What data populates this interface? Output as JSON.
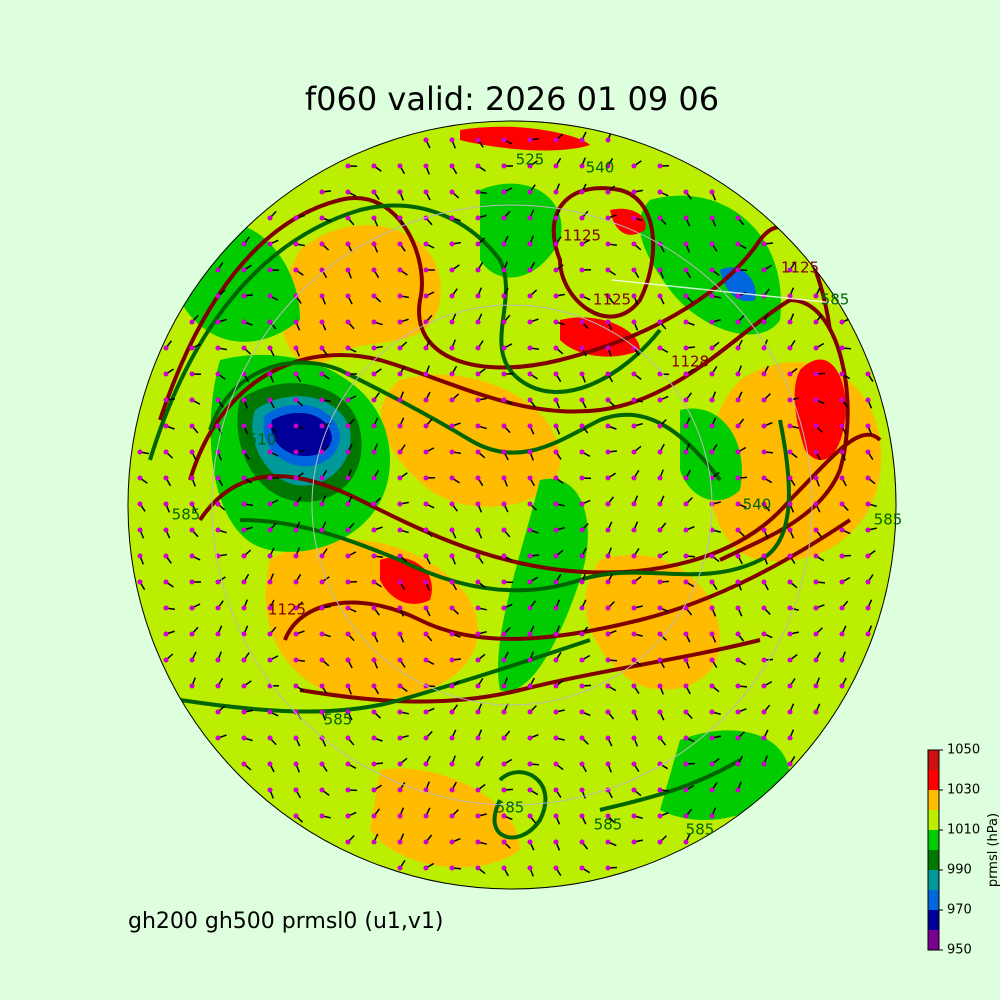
{
  "title": "f060 valid:   2026 01 09 06",
  "caption": "gh200 gh500 prmsl0 (u1,v1)",
  "colorbar": {
    "label": "prmsl (hPa)",
    "bounds": [
      950,
      960,
      970,
      980,
      990,
      1000,
      1010,
      1020,
      1030,
      1040,
      1050
    ],
    "colors": [
      "#7a0090",
      "#000099",
      "#0066dd",
      "#009999",
      "#007700",
      "#00cc00",
      "#bbee00",
      "#ffbb00",
      "#ff0000",
      "#cc1111"
    ],
    "ticks": [
      950,
      970,
      990,
      1010,
      1030,
      1050
    ]
  },
  "contour_labels": [
    "525",
    "540",
    "1125",
    "1125",
    "1128",
    "1125",
    "510",
    "540",
    "585",
    "1125",
    "585",
    "585",
    "585",
    "585",
    "585",
    "585"
  ]
}
